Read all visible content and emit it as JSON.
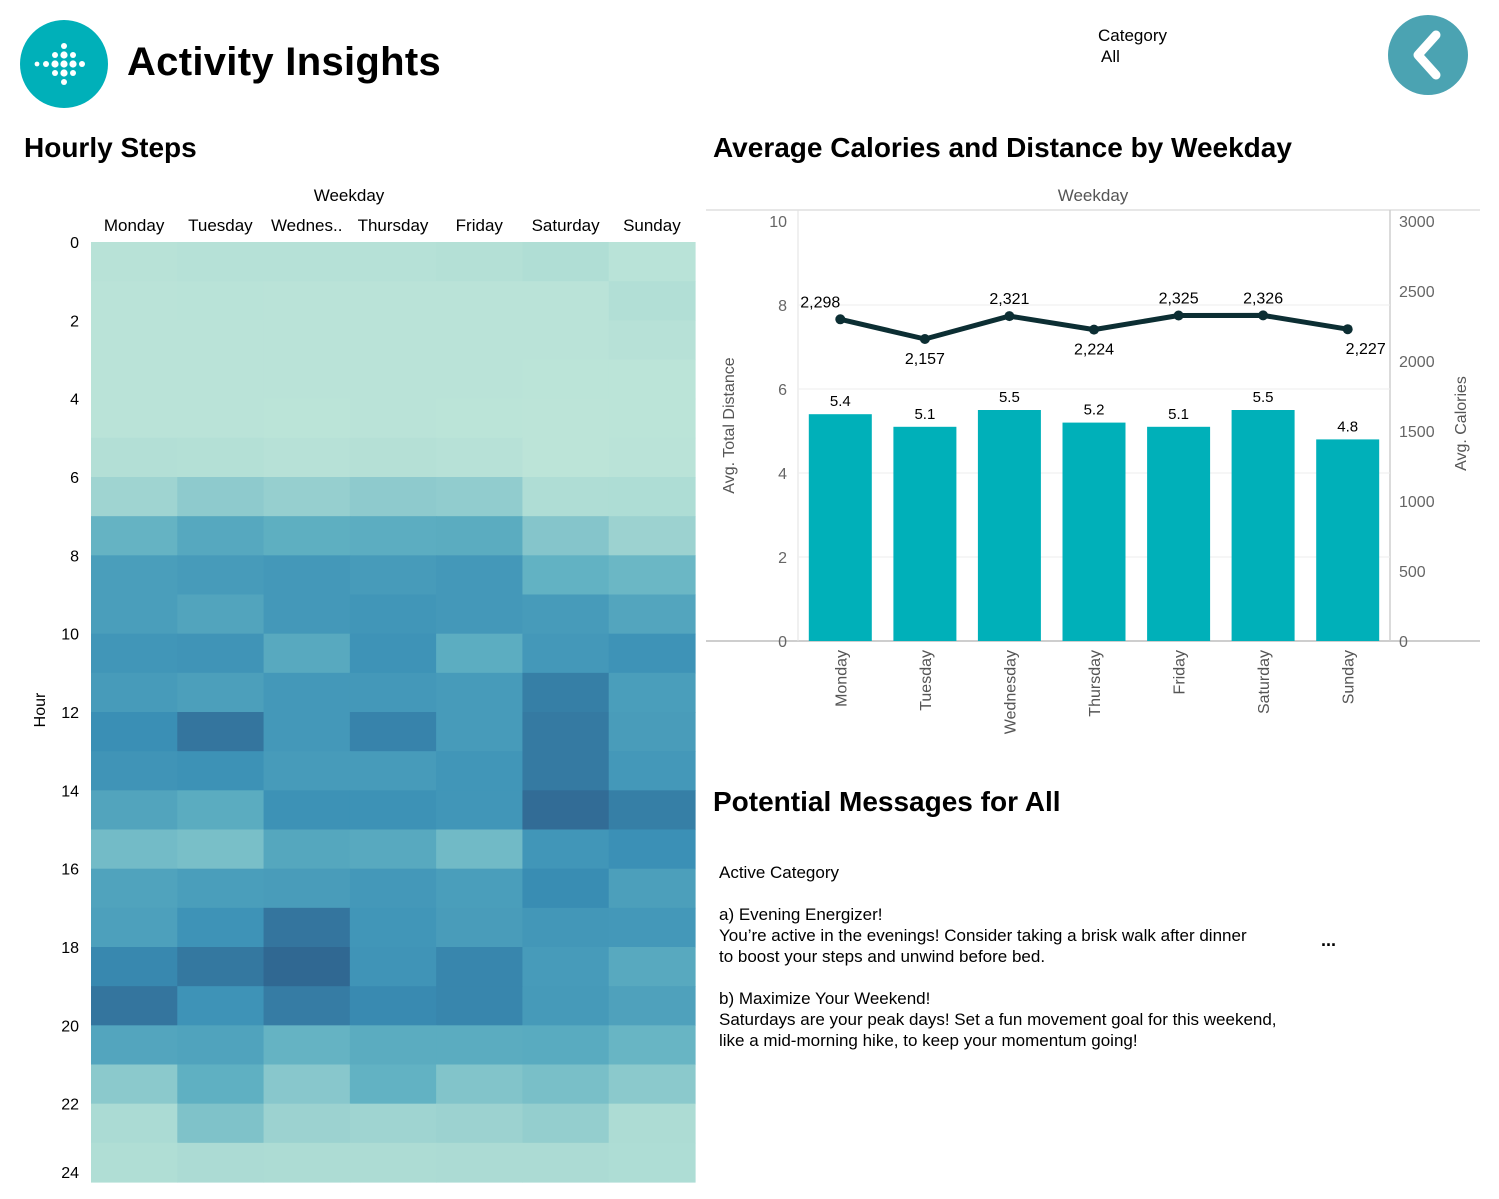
{
  "header": {
    "title": "Activity Insights",
    "filter_label": "Category",
    "filter_value": "All",
    "brand_color": "#00b0b9",
    "back_button_color": "#4ba3b2",
    "logo_icon": "fitbit-dots-icon",
    "back_icon": "chevron-left-icon"
  },
  "heatmap": {
    "section_title": "Hourly Steps",
    "column_header": "Weekday",
    "row_header": "Hour",
    "columns": [
      "Monday",
      "Tuesday",
      "Wednes..",
      "Thursday",
      "Friday",
      "Saturday",
      "Sunday"
    ],
    "y_ticks": [
      "0",
      "2",
      "4",
      "6",
      "8",
      "10",
      "12",
      "14",
      "16",
      "18",
      "20",
      "22",
      "24"
    ]
  },
  "combo_chart": {
    "section_title": "Average Calories and Distance by Weekday"
  },
  "chart_data": [
    {
      "type": "heatmap",
      "title": "Hourly Steps",
      "xlabel": "Weekday",
      "ylabel": "Hour",
      "categories": [
        "Monday",
        "Tuesday",
        "Wednes..",
        "Thursday",
        "Friday",
        "Saturday",
        "Sunday"
      ],
      "y_range": [
        0,
        24
      ],
      "rows": [
        0,
        1,
        2,
        3,
        4,
        5,
        6,
        7,
        8,
        9,
        10,
        11,
        12,
        13,
        14,
        15,
        16,
        17,
        18,
        19,
        20,
        21,
        22,
        23
      ],
      "intensity": [
        [
          0.08,
          0.1,
          0.1,
          0.1,
          0.12,
          0.16,
          0.06
        ],
        [
          0.05,
          0.06,
          0.05,
          0.05,
          0.05,
          0.05,
          0.14
        ],
        [
          0.05,
          0.05,
          0.05,
          0.05,
          0.05,
          0.05,
          0.09
        ],
        [
          0.05,
          0.05,
          0.05,
          0.05,
          0.05,
          0.04,
          0.04
        ],
        [
          0.05,
          0.05,
          0.04,
          0.05,
          0.04,
          0.03,
          0.04
        ],
        [
          0.13,
          0.12,
          0.09,
          0.11,
          0.09,
          0.03,
          0.05
        ],
        [
          0.28,
          0.34,
          0.31,
          0.34,
          0.33,
          0.17,
          0.18
        ],
        [
          0.48,
          0.56,
          0.51,
          0.52,
          0.53,
          0.37,
          0.29
        ],
        [
          0.64,
          0.66,
          0.68,
          0.66,
          0.68,
          0.49,
          0.46
        ],
        [
          0.64,
          0.59,
          0.68,
          0.7,
          0.68,
          0.66,
          0.58
        ],
        [
          0.7,
          0.71,
          0.55,
          0.72,
          0.52,
          0.68,
          0.72
        ],
        [
          0.66,
          0.63,
          0.68,
          0.68,
          0.66,
          0.82,
          0.64
        ],
        [
          0.75,
          0.86,
          0.68,
          0.8,
          0.66,
          0.84,
          0.65
        ],
        [
          0.71,
          0.73,
          0.66,
          0.66,
          0.7,
          0.84,
          0.68
        ],
        [
          0.59,
          0.53,
          0.73,
          0.73,
          0.7,
          0.9,
          0.82
        ],
        [
          0.43,
          0.41,
          0.57,
          0.55,
          0.44,
          0.7,
          0.74
        ],
        [
          0.6,
          0.64,
          0.65,
          0.68,
          0.64,
          0.76,
          0.63
        ],
        [
          0.62,
          0.72,
          0.86,
          0.7,
          0.65,
          0.69,
          0.68
        ],
        [
          0.78,
          0.85,
          0.92,
          0.71,
          0.79,
          0.66,
          0.55
        ],
        [
          0.86,
          0.72,
          0.83,
          0.77,
          0.79,
          0.67,
          0.61
        ],
        [
          0.58,
          0.6,
          0.48,
          0.53,
          0.53,
          0.54,
          0.47
        ],
        [
          0.35,
          0.5,
          0.36,
          0.49,
          0.38,
          0.41,
          0.35
        ],
        [
          0.22,
          0.39,
          0.29,
          0.28,
          0.29,
          0.32,
          0.2
        ],
        [
          0.16,
          0.21,
          0.2,
          0.2,
          0.21,
          0.21,
          0.18
        ]
      ],
      "color_low": "#bfe6d9",
      "color_high": "#2c5581",
      "legend": "none"
    },
    {
      "type": "bar",
      "title": "Average Calories and Distance by Weekday",
      "xlabel": "Weekday",
      "ylabel": "Avg. Total Distance",
      "categories": [
        "Monday",
        "Tuesday",
        "Wednesday",
        "Thursday",
        "Friday",
        "Saturday",
        "Sunday"
      ],
      "ylim": [
        0,
        10
      ],
      "y_ticks": [
        0,
        2,
        4,
        6,
        8,
        10
      ],
      "bar_color": "#00b0b9",
      "series": [
        {
          "type": "bar",
          "values": [
            5.4,
            5.1,
            5.5,
            5.2,
            5.1,
            5.5,
            4.8
          ],
          "labels": [
            "5.4",
            "5.1",
            "5.5",
            "5.2",
            "5.1",
            "5.5",
            "4.8"
          ]
        },
        {
          "type": "line",
          "axis": "right",
          "values": [
            2298,
            2157,
            2321,
            2224,
            2325,
            2326,
            2227
          ],
          "labels": [
            "2,298",
            "2,157",
            "2,321",
            "2,224",
            "2,325",
            "2,326",
            "2,227"
          ],
          "color": "#0c2e33"
        }
      ],
      "y2label": "Avg. Calories",
      "y2lim": [
        0,
        3000
      ],
      "y2_ticks": [
        0,
        500,
        1000,
        1500,
        2000,
        2500,
        3000
      ],
      "grid": true
    }
  ],
  "messages": {
    "section_title": "Potential Messages for All",
    "lines": [
      "Active Category",
      "",
      "a) Evening Energizer!",
      "You’re active in the evenings! Consider taking a brisk walk after dinner",
      "to boost your steps and unwind before bed.",
      "",
      "b) Maximize Your Weekend!",
      "Saturdays are your peak days! Set a fun movement goal for this weekend,",
      "like a mid-morning hike, to keep your momentum going!"
    ],
    "more_label": "..."
  }
}
